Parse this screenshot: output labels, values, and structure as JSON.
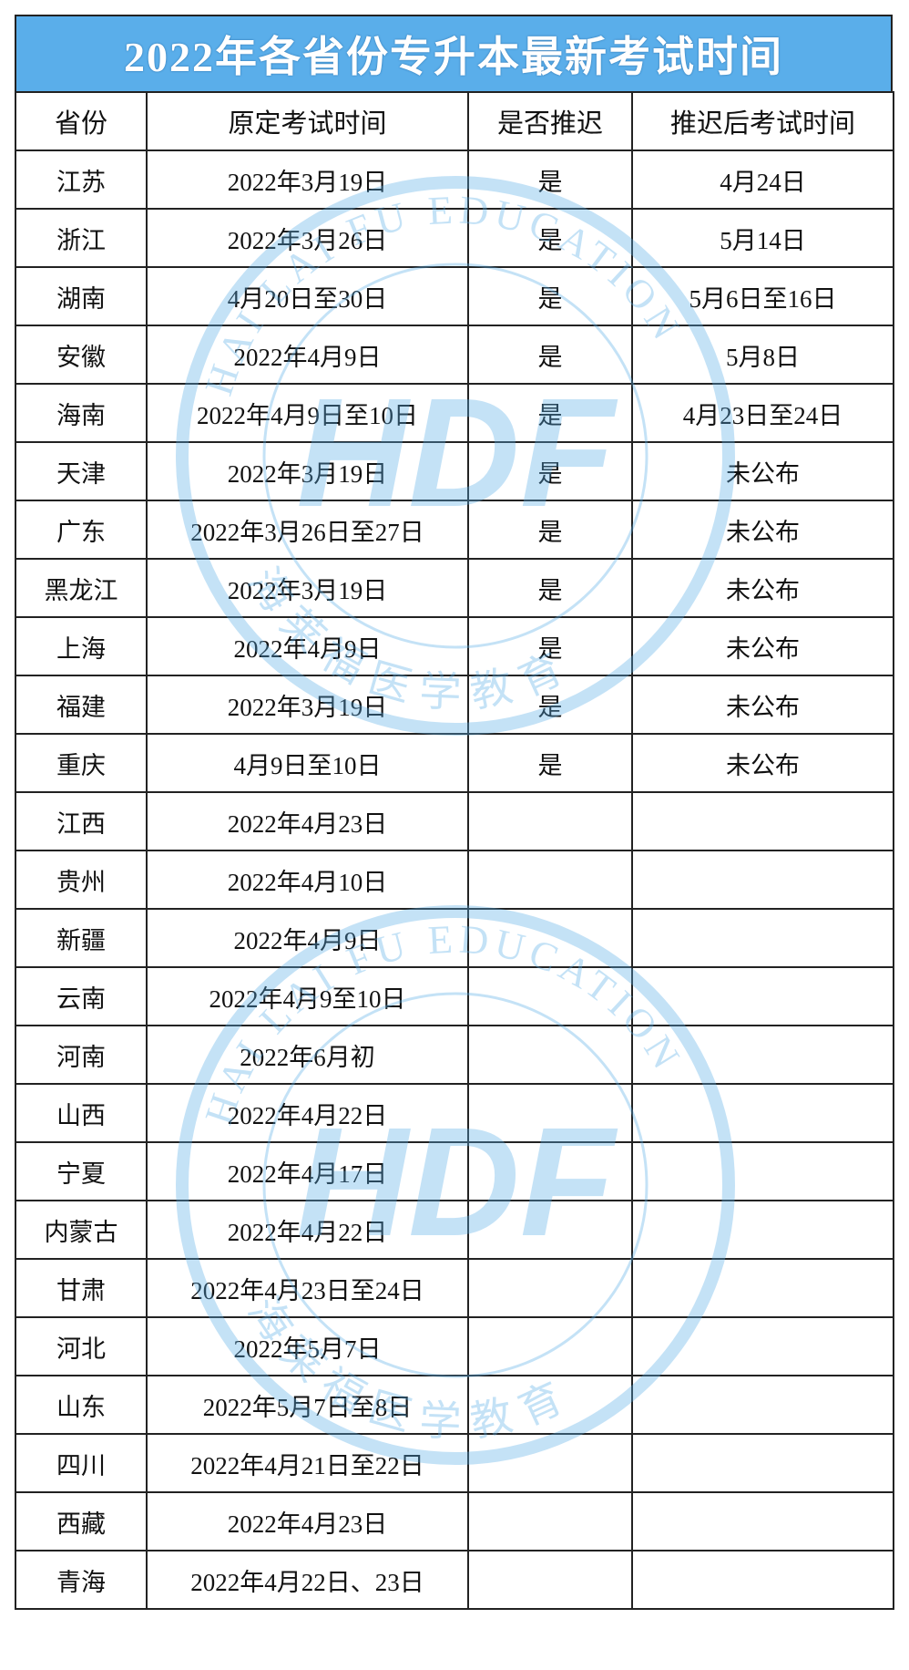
{
  "title": "2022年各省份专升本最新考试时间",
  "headers": [
    "省份",
    "原定考试时间",
    "是否推迟",
    "推迟后考试时间"
  ],
  "rows": [
    [
      "江苏",
      "2022年3月19日",
      "是",
      "4月24日"
    ],
    [
      "浙江",
      "2022年3月26日",
      "是",
      "5月14日"
    ],
    [
      "湖南",
      "4月20日至30日",
      "是",
      "5月6日至16日"
    ],
    [
      "安徽",
      "2022年4月9日",
      "是",
      "5月8日"
    ],
    [
      "海南",
      "2022年4月9日至10日",
      "是",
      "4月23日至24日"
    ],
    [
      "天津",
      "2022年3月19日",
      "是",
      "未公布"
    ],
    [
      "广东",
      "2022年3月26日至27日",
      "是",
      "未公布"
    ],
    [
      "黑龙江",
      "2022年3月19日",
      "是",
      "未公布"
    ],
    [
      "上海",
      "2022年4月9日",
      "是",
      "未公布"
    ],
    [
      "福建",
      "2022年3月19日",
      "是",
      "未公布"
    ],
    [
      "重庆",
      "4月9日至10日",
      "是",
      "未公布"
    ],
    [
      "江西",
      "2022年4月23日",
      "",
      ""
    ],
    [
      "贵州",
      "2022年4月10日",
      "",
      ""
    ],
    [
      "新疆",
      "2022年4月9日",
      "",
      ""
    ],
    [
      "云南",
      "2022年4月9至10日",
      "",
      ""
    ],
    [
      "河南",
      "2022年6月初",
      "",
      ""
    ],
    [
      "山西",
      "2022年4月22日",
      "",
      ""
    ],
    [
      "宁夏",
      "2022年4月17日",
      "",
      ""
    ],
    [
      "内蒙古",
      "2022年4月22日",
      "",
      ""
    ],
    [
      "甘肃",
      "2022年4月23日至24日",
      "",
      ""
    ],
    [
      "河北",
      "2022年5月7日",
      "",
      ""
    ],
    [
      "山东",
      "2022年5月7日至8日",
      "",
      ""
    ],
    [
      "四川",
      "2022年4月21日至22日",
      "",
      ""
    ],
    [
      "西藏",
      "2022年4月23日",
      "",
      ""
    ],
    [
      "青海",
      "2022年4月22日、23日",
      "",
      ""
    ]
  ],
  "watermark": {
    "text": "HAI LAI FU EDUCATION",
    "logo": "HDF",
    "cn": "海莱福医学教育",
    "color": "#5aaee8"
  },
  "colors": {
    "title_bg": "#5aaeea",
    "title_text": "#ffffff"
  }
}
